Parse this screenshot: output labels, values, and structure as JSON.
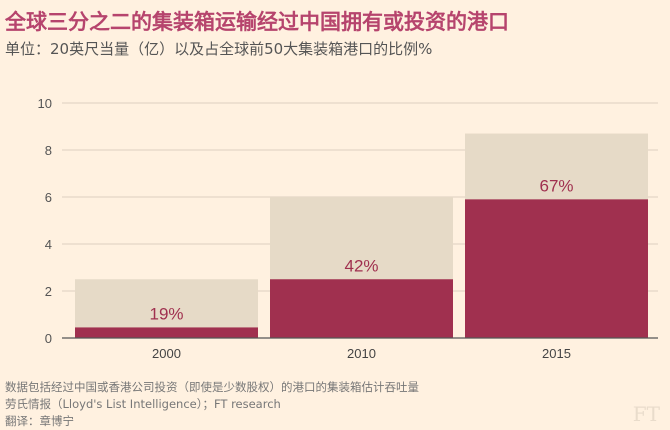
{
  "title": "全球三分之二的集装箱运输经过中国拥有或投资的港口",
  "subtitle": "单位：20英尺当量（亿）以及占全球前50大集装箱港口的比例%",
  "footnotes": [
    "数据包括经过中国或香港公司投资（即使是少数股权）的港口的集装箱估计吞吐量",
    "劳氏情报（Lloyd's List Intelligence）；FT research",
    "翻译：章博宁"
  ],
  "logo": "FT",
  "chart_data": {
    "type": "bar",
    "stacked": "overlay",
    "categories": [
      "2000",
      "2010",
      "2015"
    ],
    "series": [
      {
        "values": [
          2.5,
          6.0,
          8.7
        ],
        "color": "#e6dac7"
      },
      {
        "values": [
          0.45,
          2.5,
          5.9
        ],
        "color": "#a0304f"
      }
    ],
    "data_labels": [
      "19%",
      "42%",
      "67%"
    ],
    "ylim": [
      0,
      10
    ],
    "yticks": [
      0,
      2,
      4,
      6,
      8,
      10
    ],
    "grid": true,
    "title": "全球三分之二的集装箱运输经过中国拥有或投资的港口",
    "ylabel": "单位：20英尺当量（亿）以及占全球前50大集装箱港口的比例%"
  }
}
